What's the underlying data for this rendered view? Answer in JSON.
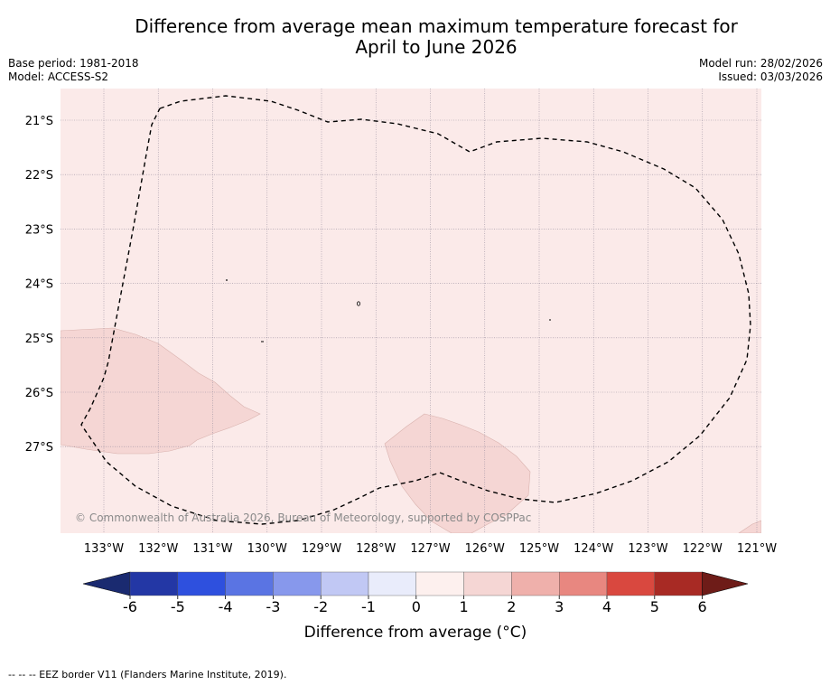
{
  "title": {
    "line1": "Difference from average mean maximum temperature forecast for",
    "line2": "April to June 2026"
  },
  "meta_left": {
    "base_period": "Base period: 1981-2018",
    "model": "Model: ACCESS-S2"
  },
  "meta_right": {
    "model_run": "Model run: 28/02/2026",
    "issued": "Issued: 03/03/2026"
  },
  "map": {
    "lat_labels": [
      "21°S",
      "22°S",
      "23°S",
      "24°S",
      "25°S",
      "26°S",
      "27°S"
    ],
    "lon_labels": [
      "133°W",
      "132°W",
      "131°W",
      "130°W",
      "129°W",
      "128°W",
      "127°W",
      "126°W",
      "125°W",
      "124°W",
      "123°W",
      "122°W",
      "121°W"
    ],
    "background_color": "#fbeae9",
    "anomaly_patch_color": "#f5d6d4",
    "copyright": "© Commonwealth of Australia 2026, Bureau of Meteorology, supported by COSPPac"
  },
  "colorbar": {
    "ticks": [
      "-6",
      "-5",
      "-4",
      "-3",
      "-2",
      "-1",
      "0",
      "1",
      "2",
      "3",
      "4",
      "5",
      "6"
    ],
    "colors": [
      "#2337a5",
      "#2e50de",
      "#5a74e3",
      "#8798ec",
      "#c1c8f4",
      "#e9ecfb",
      "#fdf0ee",
      "#f5d6d4",
      "#efb0ab",
      "#e88780",
      "#d9483f",
      "#a82a24"
    ],
    "low_extend_color": "#1a2a70",
    "high_extend_color": "#6e1c18",
    "label": "Difference from average (°C)"
  },
  "footer": "-- -- -- EEZ border V11 (Flanders Marine Institute, 2019)."
}
